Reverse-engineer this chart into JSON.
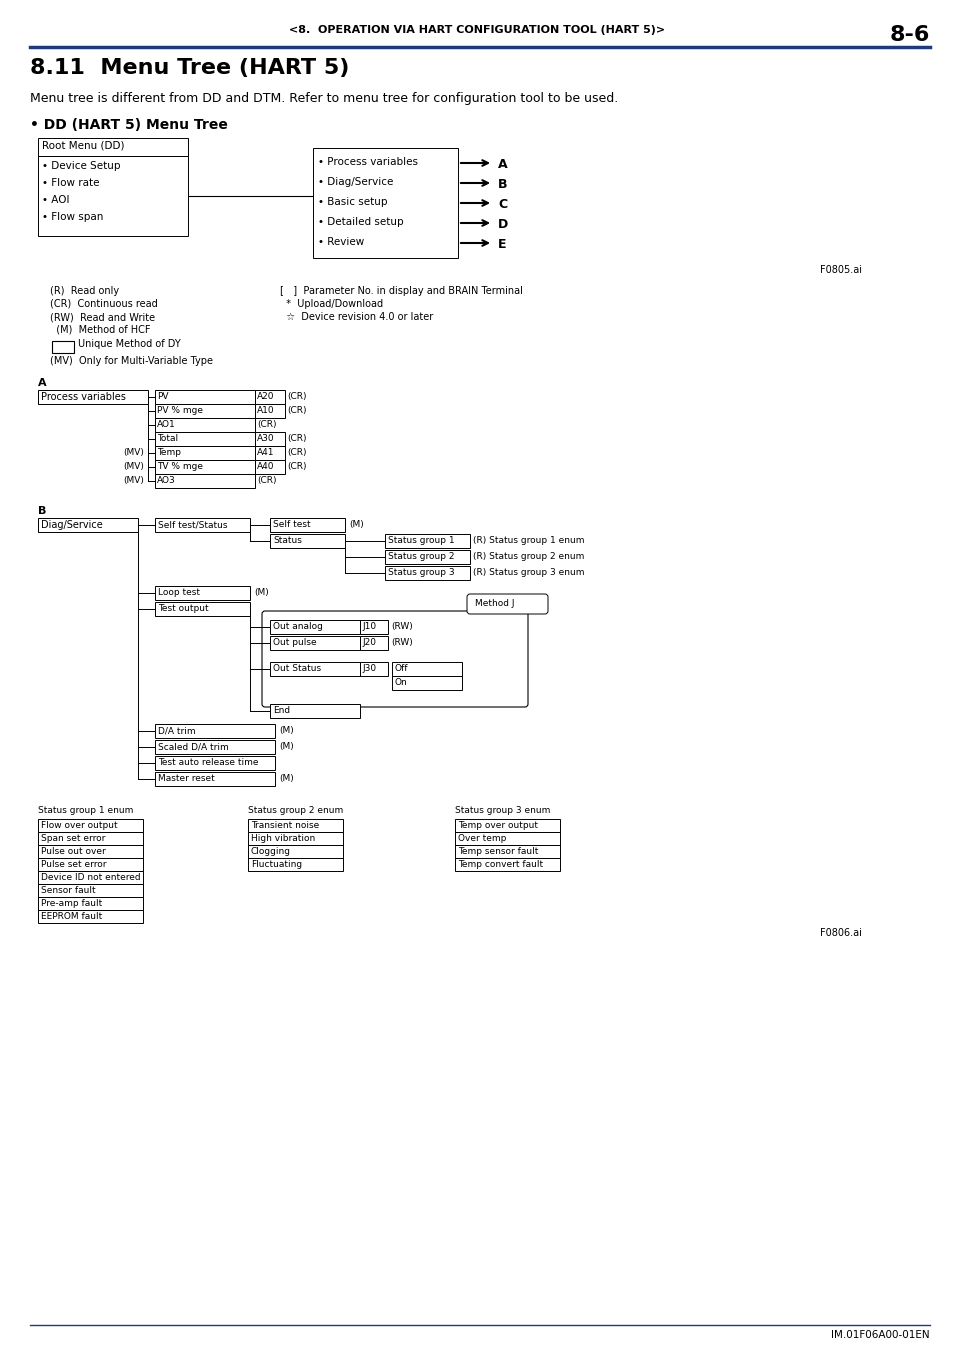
{
  "page_header": "<8.  OPERATION VIA HART CONFIGURATION TOOL (HART 5)>",
  "page_number": "8-6",
  "section_title": "8.11  Menu Tree (HART 5)",
  "intro_text": "Menu tree is different from DD and DTM. Refer to menu tree for configuration tool to be used.",
  "subsection_title": "• DD (HART 5) Menu Tree",
  "footer_ref1": "IM.01F06A00-01EN",
  "blue_color": "#1e3a7a",
  "black": "#000000",
  "white": "#ffffff"
}
